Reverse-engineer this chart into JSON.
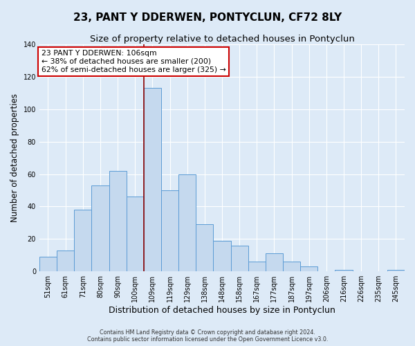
{
  "title": "23, PANT Y DDERWEN, PONTYCLUN, CF72 8LY",
  "subtitle": "Size of property relative to detached houses in Pontyclun",
  "xlabel": "Distribution of detached houses by size in Pontyclun",
  "ylabel": "Number of detached properties",
  "bar_labels": [
    "51sqm",
    "61sqm",
    "71sqm",
    "80sqm",
    "90sqm",
    "100sqm",
    "109sqm",
    "119sqm",
    "129sqm",
    "138sqm",
    "148sqm",
    "158sqm",
    "167sqm",
    "177sqm",
    "187sqm",
    "197sqm",
    "206sqm",
    "216sqm",
    "226sqm",
    "235sqm",
    "245sqm"
  ],
  "bar_values": [
    9,
    13,
    38,
    53,
    62,
    46,
    113,
    50,
    60,
    29,
    19,
    16,
    6,
    11,
    6,
    3,
    0,
    1,
    0,
    0,
    1
  ],
  "bar_color": "#c5d9ee",
  "bar_edgecolor": "#5b9bd5",
  "annotation_title": "23 PANT Y DDERWEN: 106sqm",
  "annotation_line1": "← 38% of detached houses are smaller (200)",
  "annotation_line2": "62% of semi-detached houses are larger (325) →",
  "annotation_box_color": "#ffffff",
  "annotation_box_edgecolor": "#cc0000",
  "vline_color": "#8b0000",
  "vline_x": 5.5,
  "ylim": [
    0,
    140
  ],
  "yticks": [
    0,
    20,
    40,
    60,
    80,
    100,
    120,
    140
  ],
  "footnote1": "Contains HM Land Registry data © Crown copyright and database right 2024.",
  "footnote2": "Contains public sector information licensed under the Open Government Licence v3.0.",
  "background_color": "#ddeaf7",
  "plot_background": "#ddeaf7",
  "grid_color": "#ffffff",
  "title_fontsize": 11,
  "subtitle_fontsize": 9.5,
  "xlabel_fontsize": 9,
  "ylabel_fontsize": 8.5,
  "annotation_fontsize": 7.8,
  "tick_fontsize": 7,
  "footnote_fontsize": 5.8
}
